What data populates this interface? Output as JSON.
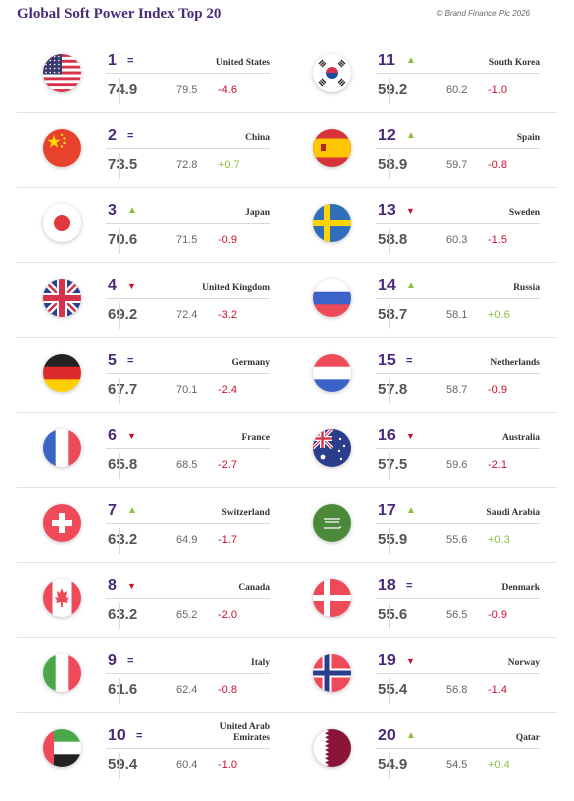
{
  "header": {
    "title": "Global Soft Power Index Top 20",
    "copyright": "© Brand Finance Plc 2026"
  },
  "chart_data": {
    "type": "table",
    "title": "Global Soft Power Index Top 20",
    "columns": [
      "rank",
      "trend",
      "country",
      "score",
      "previous_score",
      "change"
    ],
    "colors": {
      "rank": "#4a2a78",
      "positive": "#8dc13f",
      "negative": "#c8102e"
    },
    "rows": [
      {
        "rank": "1",
        "trend": "same",
        "country": "United States",
        "score": "74.9",
        "prev": "79.5",
        "change": "-4.6",
        "flag": "us-flag-icon"
      },
      {
        "rank": "2",
        "trend": "same",
        "country": "China",
        "score": "73.5",
        "prev": "72.8",
        "change": "+0.7",
        "flag": "cn-flag-icon"
      },
      {
        "rank": "3",
        "trend": "up",
        "country": "Japan",
        "score": "70.6",
        "prev": "71.5",
        "change": "-0.9",
        "flag": "jp-flag-icon"
      },
      {
        "rank": "4",
        "trend": "down",
        "country": "United Kingdom",
        "score": "69.2",
        "prev": "72.4",
        "change": "-3.2",
        "flag": "gb-flag-icon"
      },
      {
        "rank": "5",
        "trend": "same",
        "country": "Germany",
        "score": "67.7",
        "prev": "70.1",
        "change": "-2.4",
        "flag": "de-flag-icon"
      },
      {
        "rank": "6",
        "trend": "down",
        "country": "France",
        "score": "65.8",
        "prev": "68.5",
        "change": "-2.7",
        "flag": "fr-flag-icon"
      },
      {
        "rank": "7",
        "trend": "up",
        "country": "Switzerland",
        "score": "63.2",
        "prev": "64.9",
        "change": "-1.7",
        "flag": "ch-flag-icon"
      },
      {
        "rank": "8",
        "trend": "down",
        "country": "Canada",
        "score": "63.2",
        "prev": "65.2",
        "change": "-2.0",
        "flag": "ca-flag-icon"
      },
      {
        "rank": "9",
        "trend": "same",
        "country": "Italy",
        "score": "61.6",
        "prev": "62.4",
        "change": "-0.8",
        "flag": "it-flag-icon"
      },
      {
        "rank": "10",
        "trend": "same",
        "country": "United Arab Emirates",
        "score": "59.4",
        "prev": "60.4",
        "change": "-1.0",
        "flag": "ae-flag-icon"
      },
      {
        "rank": "11",
        "trend": "up",
        "country": "South Korea",
        "score": "59.2",
        "prev": "60.2",
        "change": "-1.0",
        "flag": "kr-flag-icon"
      },
      {
        "rank": "12",
        "trend": "up",
        "country": "Spain",
        "score": "58.9",
        "prev": "59.7",
        "change": "-0.8",
        "flag": "es-flag-icon"
      },
      {
        "rank": "13",
        "trend": "down",
        "country": "Sweden",
        "score": "58.8",
        "prev": "60.3",
        "change": "-1.5",
        "flag": "se-flag-icon"
      },
      {
        "rank": "14",
        "trend": "up",
        "country": "Russia",
        "score": "58.7",
        "prev": "58.1",
        "change": "+0.6",
        "flag": "ru-flag-icon"
      },
      {
        "rank": "15",
        "trend": "same",
        "country": "Netherlands",
        "score": "57.8",
        "prev": "58.7",
        "change": "-0.9",
        "flag": "nl-flag-icon"
      },
      {
        "rank": "16",
        "trend": "down",
        "country": "Australia",
        "score": "57.5",
        "prev": "59.6",
        "change": "-2.1",
        "flag": "au-flag-icon"
      },
      {
        "rank": "17",
        "trend": "up",
        "country": "Saudi Arabia",
        "score": "55.9",
        "prev": "55.6",
        "change": "+0.3",
        "flag": "sa-flag-icon"
      },
      {
        "rank": "18",
        "trend": "same",
        "country": "Denmark",
        "score": "55.6",
        "prev": "56.5",
        "change": "-0.9",
        "flag": "dk-flag-icon"
      },
      {
        "rank": "19",
        "trend": "down",
        "country": "Norway",
        "score": "55.4",
        "prev": "56.8",
        "change": "-1.4",
        "flag": "no-flag-icon"
      },
      {
        "rank": "20",
        "trend": "up",
        "country": "Qatar",
        "score": "54.9",
        "prev": "54.5",
        "change": "+0.4",
        "flag": "qa-flag-icon"
      }
    ]
  }
}
